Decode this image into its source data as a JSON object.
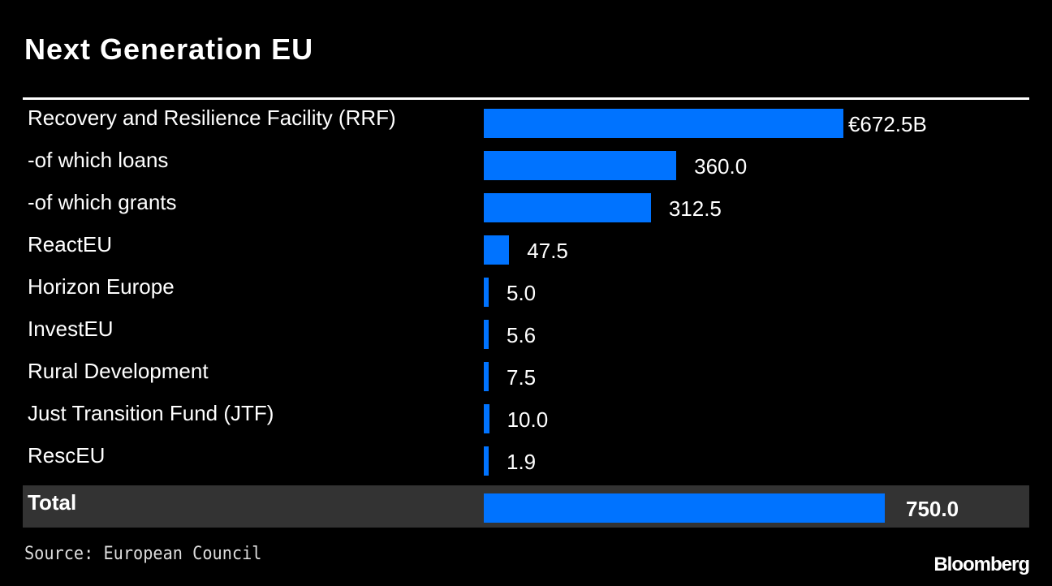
{
  "chart_data": {
    "type": "bar",
    "orientation": "horizontal",
    "title": "Next Generation EU",
    "categories": [
      "Recovery and Resilience Facility (RRF)",
      "-of which loans",
      "-of which grants",
      "ReactEU",
      "Horizon Europe",
      "InvestEU",
      "Rural Development",
      "Just Transition Fund (JTF)",
      "RescEU",
      "Total"
    ],
    "values": [
      672.5,
      360.0,
      312.5,
      47.5,
      5.0,
      5.6,
      7.5,
      10.0,
      1.9,
      750.0
    ],
    "value_labels": [
      "€672.5B",
      "360.0",
      "312.5",
      "47.5",
      "5.0",
      "5.6",
      "7.5",
      "10.0",
      "1.9",
      "750.0"
    ],
    "unit": "€ billion",
    "xlim": [
      0,
      750
    ],
    "color": "#0073ff",
    "total_row_color": "#333333",
    "source": "Source: European Council"
  },
  "branding": {
    "logo": "Bloomberg"
  }
}
